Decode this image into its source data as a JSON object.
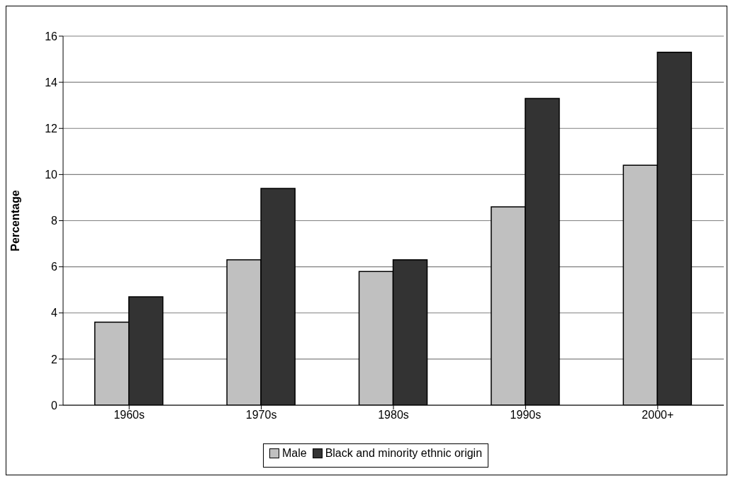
{
  "chart_data": {
    "type": "bar",
    "ylabel": "Percentage",
    "categories": [
      "1960s",
      "1970s",
      "1980s",
      "1990s",
      "2000+"
    ],
    "series": [
      {
        "name": "Male",
        "color": "#c0c0c0",
        "values": [
          3.6,
          6.3,
          5.8,
          8.6,
          10.4
        ]
      },
      {
        "name": "Black and minority ethnic origin",
        "color": "#333333",
        "values": [
          4.7,
          9.4,
          6.3,
          13.3,
          15.3
        ]
      }
    ],
    "ylim": [
      0,
      16
    ],
    "yticks": [
      0,
      2,
      4,
      6,
      8,
      10,
      12,
      14,
      16
    ],
    "grid": "y",
    "legend": "bottom"
  }
}
